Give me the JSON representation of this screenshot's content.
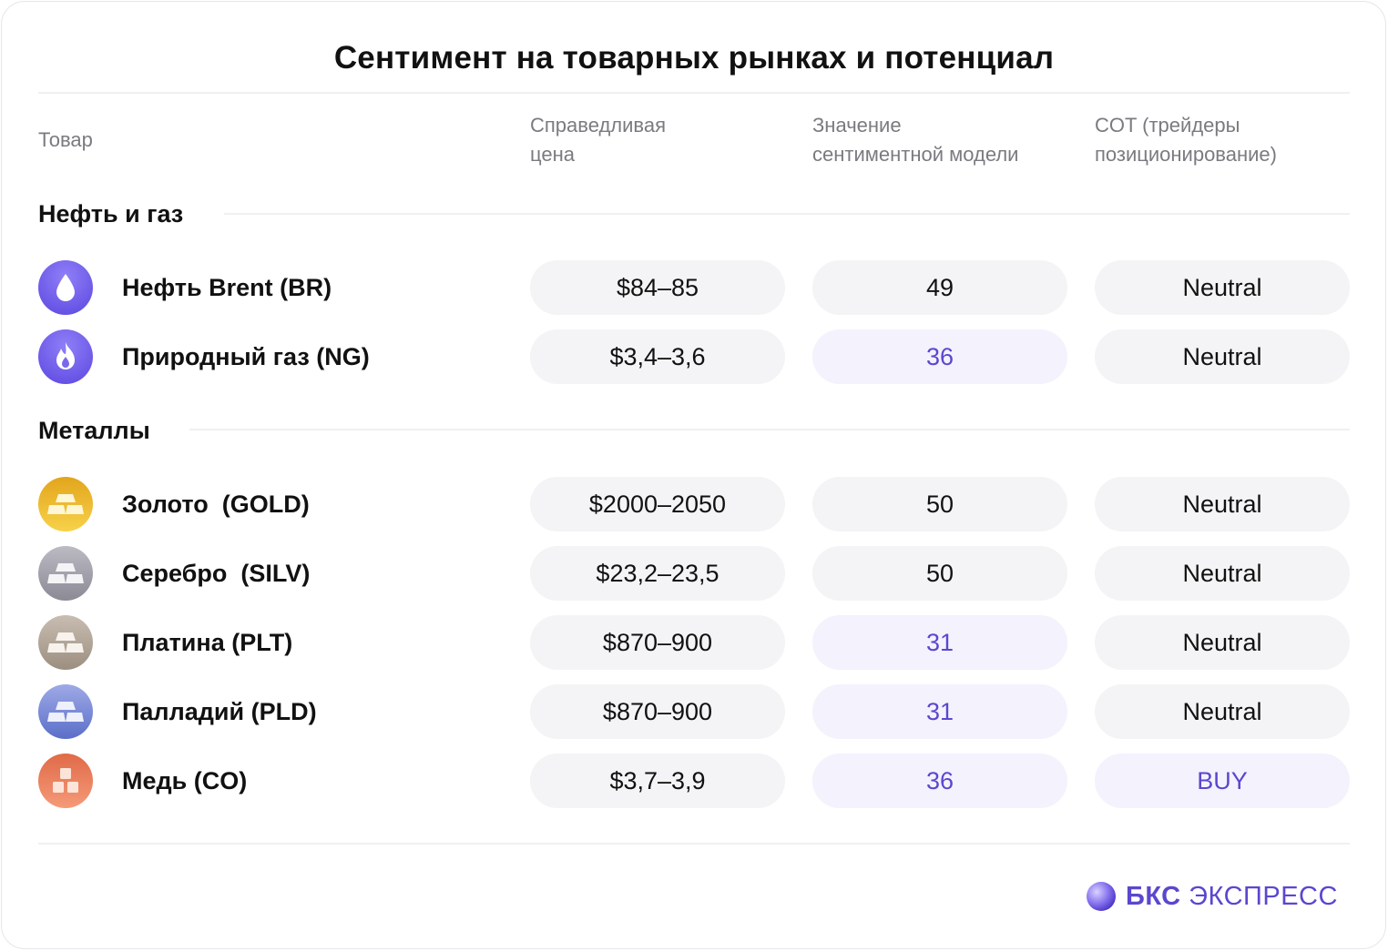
{
  "title": "Сентимент на товарных рынках и потенциал",
  "columns": {
    "product": "Товар",
    "fair_price": "Справедливая\nцена",
    "sentiment": "Значение\nсентиментной модели",
    "cot": "COT (трейдеры\nпозиционирование)"
  },
  "sections": [
    {
      "label": "Нефть и газ",
      "rows": [
        {
          "icon": "oil-drop-icon",
          "name": "Нефть Brent (BR)",
          "price": "$84–85",
          "sentiment": "49",
          "cot": "Neutral"
        },
        {
          "icon": "flame-icon",
          "name": "Природный газ (NG)",
          "price": "$3,4–3,6",
          "sentiment": "36",
          "cot": "Neutral"
        }
      ]
    },
    {
      "label": "Металлы",
      "rows": [
        {
          "icon": "gold-bars-icon",
          "name": "Золото  (GOLD)",
          "price": "$2000–2050",
          "sentiment": "50",
          "cot": "Neutral"
        },
        {
          "icon": "silver-bars-icon",
          "name": "Серебро  (SILV)",
          "price": "$23,2–23,5",
          "sentiment": "50",
          "cot": "Neutral"
        },
        {
          "icon": "platinum-bars-icon",
          "name": "Платина (PLT)",
          "price": "$870–900",
          "sentiment": "31",
          "cot": "Neutral"
        },
        {
          "icon": "palladium-bars-icon",
          "name": "Палладий (PLD)",
          "price": "$870–900",
          "sentiment": "31",
          "cot": "Neutral"
        },
        {
          "icon": "copper-blocks-icon",
          "name": "Медь (CO)",
          "price": "$3,7–3,9",
          "sentiment": "36",
          "cot": "BUY"
        }
      ]
    }
  ],
  "brand": {
    "bold": "БКС",
    "rest": "ЭКСПРЕСС"
  },
  "colors": {
    "accent": "#5a47cf",
    "highlight_bg": "#f3f2fd",
    "pill_bg": "#f4f4f6",
    "oil": "#6f5cf0",
    "gas": "#6f5cf0",
    "gold": "#f0bd2e",
    "silver": "#9d9ca6",
    "platinum": "#b0a496",
    "palladium": "#7f8fdb",
    "copper": "#ee8160"
  }
}
